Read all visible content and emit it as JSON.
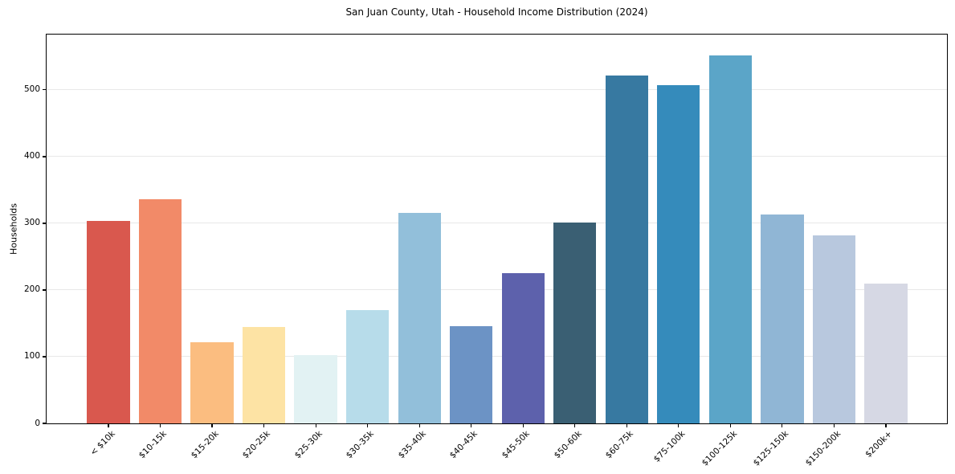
{
  "chart_data": {
    "type": "bar",
    "title": "San Juan County, Utah - Household Income Distribution (2024)",
    "xlabel": "",
    "ylabel": "Households",
    "categories": [
      "< $10k",
      "$10-15k",
      "$15-20k",
      "$20-25k",
      "$25-30k",
      "$30-35k",
      "$35-40k",
      "$40-45k",
      "$45-50k",
      "$50-60k",
      "$60-75k",
      "$75-100k",
      "$100-125k",
      "$125-150k",
      "$150-200k",
      "$200k+"
    ],
    "values": [
      303,
      336,
      122,
      145,
      103,
      170,
      316,
      146,
      225,
      301,
      521,
      507,
      552,
      313,
      282,
      210
    ],
    "bar_colors": [
      "#d9584e",
      "#f28a68",
      "#fbbd80",
      "#fde3a4",
      "#e2f2f3",
      "#b7dcea",
      "#92bfda",
      "#6c93c5",
      "#5d61ac",
      "#3a5f73",
      "#3779a1",
      "#358bbb",
      "#5ba5c8",
      "#90b6d5",
      "#b8c8de",
      "#d6d8e4"
    ],
    "yticks": [
      0,
      100,
      200,
      300,
      400,
      500
    ],
    "ylim": [
      0,
      583
    ],
    "grid": "horizontal-only",
    "legend": "none",
    "background_color": "#ffffff",
    "grid_color": "#e8e8e8",
    "spine_color": "#000000",
    "text_color": "#000000"
  }
}
